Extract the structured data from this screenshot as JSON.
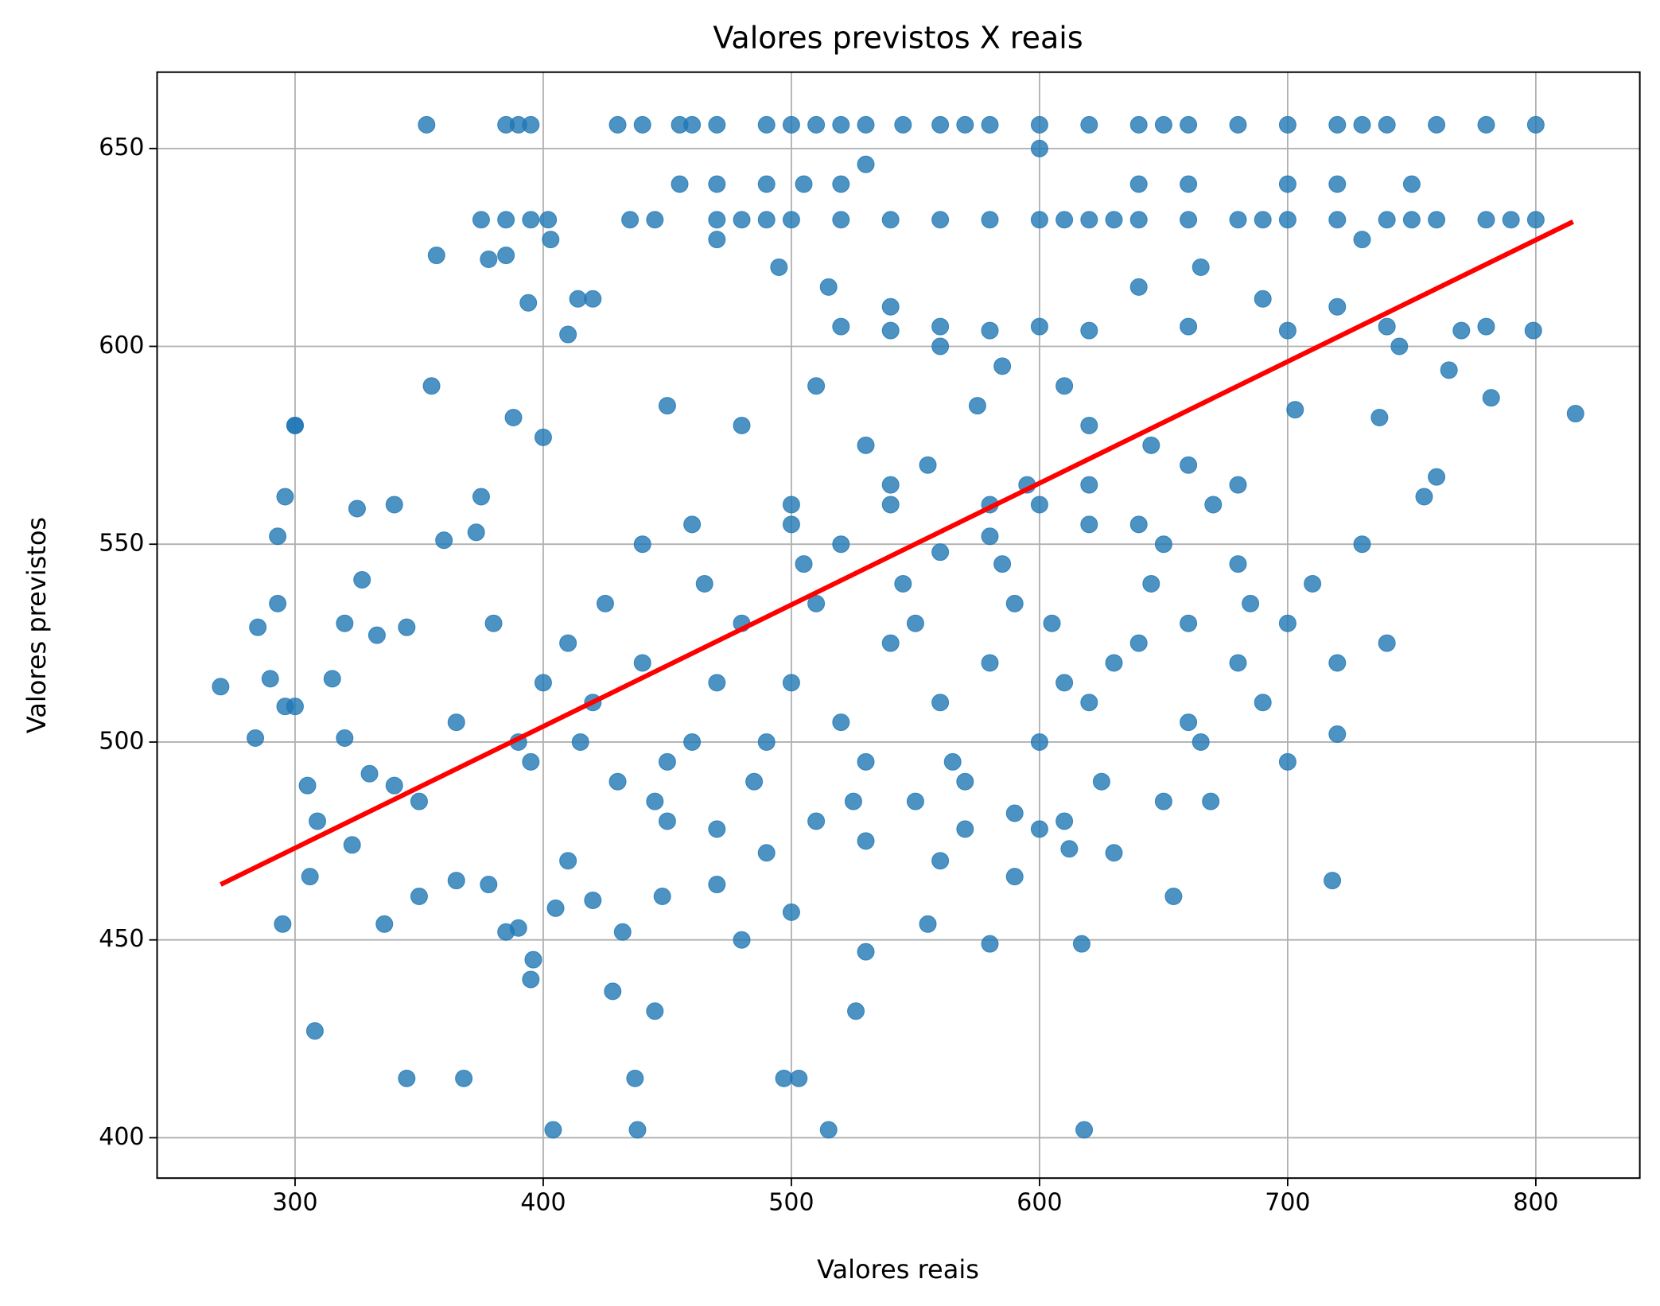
{
  "chart_data": {
    "type": "scatter",
    "title": "Valores previstos X reais",
    "xlabel": "Valores reais",
    "ylabel": "Valores previstos",
    "xlim": [
      244.4,
      841.9
    ],
    "ylim": [
      389.8,
      669.3
    ],
    "xticks": [
      300,
      400,
      500,
      600,
      700,
      800
    ],
    "yticks": [
      400,
      450,
      500,
      550,
      600,
      650
    ],
    "grid": true,
    "series": [
      {
        "color": "#1f77b4",
        "x": [
          270,
          300,
          308,
          345,
          368,
          404,
          438,
          515,
          618,
          353,
          816,
          497,
          503,
          437,
          526,
          445,
          428,
          396,
          395,
          617,
          385,
          390,
          395,
          430,
          440,
          455,
          460,
          470,
          490,
          500,
          510,
          520,
          530,
          545,
          560,
          580,
          600,
          620,
          640,
          660,
          680,
          700,
          720,
          740,
          760,
          780,
          800,
          570,
          650,
          730,
          375,
          385,
          395,
          402,
          435,
          445,
          470,
          480,
          490,
          500,
          520,
          540,
          560,
          580,
          600,
          620,
          640,
          660,
          680,
          700,
          720,
          740,
          760,
          780,
          800,
          790,
          610,
          630,
          690,
          750,
          455,
          470,
          490,
          505,
          520,
          640,
          660,
          700,
          720,
          750,
          520,
          540,
          560,
          580,
          600,
          620,
          660,
          700,
          740,
          770,
          357,
          378,
          385,
          394,
          403,
          410,
          420,
          530,
          600,
          730,
          470,
          495,
          515,
          540,
          560,
          585,
          610,
          640,
          665,
          690,
          720,
          745,
          765,
          780,
          703,
          760,
          782,
          799,
          755,
          737,
          450,
          480,
          510,
          530,
          555,
          575,
          595,
          620,
          645,
          670,
          300,
          296,
          293,
          325,
          340,
          355,
          375,
          388,
          400,
          414,
          284,
          290,
          296,
          305,
          315,
          320,
          330,
          340,
          350,
          365,
          285,
          293,
          300,
          309,
          320,
          327,
          333,
          345,
          360,
          373,
          295,
          306,
          323,
          336,
          350,
          365,
          378,
          385,
          390,
          405,
          410,
          420,
          432,
          448,
          470,
          480,
          500,
          530,
          555,
          580,
          590,
          600,
          612,
          630,
          650,
          654,
          669,
          700,
          718,
          720,
          420,
          440,
          460,
          480,
          500,
          520,
          540,
          560,
          580,
          600,
          430,
          450,
          470,
          490,
          510,
          530,
          550,
          570,
          590,
          610,
          620,
          640,
          660,
          680,
          410,
          415,
          425,
          445,
          465,
          485,
          505,
          525,
          545,
          565,
          585,
          605,
          625,
          645,
          665,
          685,
          390,
          400,
          380,
          395,
          440,
          460,
          500,
          540,
          580,
          620,
          700,
          710,
          720,
          730,
          740,
          690,
          680,
          650,
          660,
          630,
          510,
          530,
          550,
          570,
          590,
          610,
          490,
          470,
          450,
          560,
          600,
          620,
          640,
          660,
          680,
          500,
          520,
          540,
          560,
          580
        ],
        "values": [
          514,
          580,
          427,
          415,
          415,
          402,
          402,
          402,
          402,
          656,
          583,
          415,
          415,
          415,
          432,
          432,
          437,
          445,
          440,
          449,
          656,
          656,
          656,
          656,
          656,
          656,
          656,
          656,
          656,
          656,
          656,
          656,
          656,
          656,
          656,
          656,
          656,
          656,
          656,
          656,
          656,
          656,
          656,
          656,
          656,
          656,
          656,
          656,
          656,
          656,
          632,
          632,
          632,
          632,
          632,
          632,
          632,
          632,
          632,
          632,
          632,
          632,
          632,
          632,
          632,
          632,
          632,
          632,
          632,
          632,
          632,
          632,
          632,
          632,
          632,
          632,
          632,
          632,
          632,
          632,
          641,
          641,
          641,
          641,
          641,
          641,
          641,
          641,
          641,
          641,
          605,
          604,
          605,
          604,
          605,
          604,
          605,
          604,
          605,
          604,
          623,
          622,
          623,
          611,
          627,
          603,
          612,
          646,
          650,
          627,
          627,
          620,
          615,
          610,
          600,
          595,
          590,
          615,
          620,
          612,
          610,
          600,
          594,
          605,
          584,
          567,
          587,
          604,
          562,
          582,
          585,
          580,
          590,
          575,
          570,
          585,
          565,
          580,
          575,
          560,
          580,
          562,
          552,
          559,
          560,
          590,
          562,
          582,
          577,
          612,
          501,
          516,
          509,
          489,
          516,
          501,
          492,
          489,
          485,
          505,
          529,
          535,
          509,
          480,
          530,
          541,
          527,
          529,
          551,
          553,
          454,
          466,
          474,
          454,
          461,
          465,
          464,
          452,
          453,
          458,
          470,
          460,
          452,
          461,
          464,
          450,
          457,
          447,
          454,
          449,
          466,
          478,
          473,
          472,
          485,
          461,
          485,
          495,
          465,
          502,
          510,
          520,
          500,
          530,
          515,
          505,
          525,
          510,
          520,
          500,
          490,
          495,
          515,
          500,
          535,
          495,
          530,
          490,
          535,
          515,
          510,
          525,
          505,
          520,
          525,
          500,
          535,
          485,
          540,
          490,
          545,
          485,
          540,
          495,
          545,
          530,
          490,
          540,
          500,
          535,
          500,
          515,
          530,
          495,
          550,
          555,
          560,
          565,
          560,
          555,
          530,
          540,
          520,
          550,
          525,
          510,
          545,
          550,
          530,
          520,
          480,
          475,
          485,
          478,
          482,
          480,
          472,
          478,
          480,
          470,
          560,
          565,
          555,
          570,
          565,
          555,
          550,
          560,
          548,
          552
        ]
      }
    ],
    "fit": {
      "color": "#ff0000",
      "x": [
        270,
        815
      ],
      "values": [
        464,
        631.5
      ]
    }
  }
}
